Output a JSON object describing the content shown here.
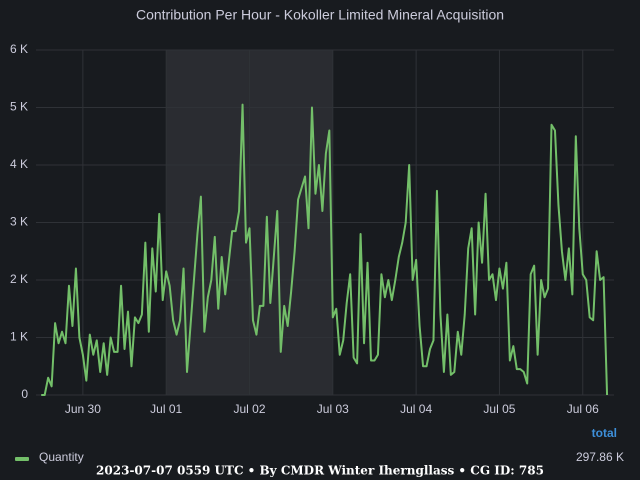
{
  "chart_data": {
    "type": "line",
    "title": "Contribution Per Hour - Kokoller Limited Mineral Acquisition",
    "x": [
      12,
      13,
      14,
      15,
      16,
      17,
      18,
      19,
      20,
      21,
      22,
      23,
      24,
      25,
      26,
      27,
      28,
      29,
      30,
      31,
      32,
      33,
      34,
      35,
      36,
      37,
      38,
      39,
      40,
      41,
      42,
      43,
      44,
      45,
      46,
      47,
      48,
      49,
      50,
      51,
      52,
      53,
      54,
      55,
      56,
      57,
      58,
      59,
      60,
      61,
      62,
      63,
      64,
      65,
      66,
      67,
      68,
      69,
      70,
      71,
      72,
      73,
      74,
      75,
      76,
      77,
      78,
      79,
      80,
      81,
      82,
      83,
      84,
      85,
      86,
      87,
      88,
      89,
      90,
      91,
      92,
      93,
      94,
      95,
      96,
      97,
      98,
      99,
      100,
      101,
      102,
      103,
      104,
      105,
      106,
      107,
      108,
      109,
      110,
      111,
      112,
      113,
      114,
      115,
      116,
      117,
      118,
      119,
      120,
      121,
      122,
      123,
      124,
      125,
      126,
      127,
      128,
      129,
      130,
      131,
      132,
      133,
      134,
      135,
      136,
      137,
      138,
      139,
      140,
      141,
      142,
      143,
      144,
      145,
      146,
      147,
      148,
      149,
      150,
      151,
      152,
      153,
      154,
      155,
      156,
      157,
      158,
      159,
      160,
      161,
      162,
      163,
      164,
      165,
      166,
      167,
      168,
      169,
      170,
      171,
      172,
      173,
      174,
      175
    ],
    "series": [
      {
        "name": "Quantity",
        "color": "#73bf69",
        "values": [
          0,
          0,
          300,
          150,
          1250,
          900,
          1100,
          900,
          1900,
          1200,
          2200,
          1000,
          700,
          250,
          1050,
          700,
          950,
          400,
          900,
          350,
          1000,
          750,
          750,
          1900,
          800,
          1450,
          500,
          1350,
          1250,
          1400,
          2650,
          1100,
          2550,
          1800,
          3150,
          1650,
          2150,
          1900,
          1300,
          1050,
          1300,
          2200,
          400,
          1200,
          2000,
          2800,
          3450,
          1100,
          1700,
          2000,
          2750,
          1500,
          2400,
          1750,
          2300,
          2850,
          2850,
          3200,
          5050,
          2650,
          2900,
          1300,
          1050,
          1550,
          1550,
          3100,
          1600,
          2400,
          3200,
          750,
          1550,
          1200,
          1800,
          2500,
          3400,
          3600,
          3800,
          2900,
          5000,
          3500,
          4000,
          3200,
          4200,
          4600,
          1350,
          1500,
          700,
          950,
          1600,
          2100,
          650,
          550,
          2800,
          900,
          2300,
          600,
          600,
          700,
          2100,
          1700,
          2000,
          1650,
          2000,
          2400,
          2650,
          3000,
          4000,
          2000,
          2350,
          1200,
          500,
          500,
          800,
          950,
          3550,
          1400,
          400,
          1400,
          350,
          400,
          1100,
          700,
          1400,
          2550,
          2900,
          1400,
          3000,
          2300,
          3500,
          2000,
          2100,
          1650,
          2200,
          1850,
          2300,
          600,
          850,
          450,
          450,
          400,
          200,
          2100,
          2250,
          700,
          2000,
          1700,
          1850,
          4700,
          4600,
          3300,
          2500,
          2000,
          2550,
          1750,
          4500,
          2900,
          2100,
          2000,
          1350,
          1300,
          2500,
          2000,
          2050,
          0
        ]
      }
    ],
    "xlim": [
      10.5,
      177
    ],
    "xticks": [
      {
        "value": 24,
        "label": "Jun 30"
      },
      {
        "value": 48,
        "label": "Jul 01"
      },
      {
        "value": 72,
        "label": "Jul 02"
      },
      {
        "value": 96,
        "label": "Jul 03"
      },
      {
        "value": 120,
        "label": "Jul 04"
      },
      {
        "value": 144,
        "label": "Jul 05"
      },
      {
        "value": 168,
        "label": "Jul 06"
      }
    ],
    "ylim": [
      0,
      6000
    ],
    "yticks": [
      0,
      {
        "value": 1000,
        "label": "1 K"
      },
      {
        "value": 2000,
        "label": "2 K"
      },
      {
        "value": 3000,
        "label": "3 K"
      },
      {
        "value": 4000,
        "label": "4 K"
      },
      {
        "value": 5000,
        "label": "5 K"
      },
      {
        "value": 6000,
        "label": "6 K"
      }
    ],
    "grid": true,
    "shaded_range": [
      48,
      96
    ],
    "legend_header": "total",
    "legend_total": "297.86 K",
    "footer": "2023-07-07 0559 UTC • By CMDR Winter Iherngllass • CG ID: 785"
  }
}
